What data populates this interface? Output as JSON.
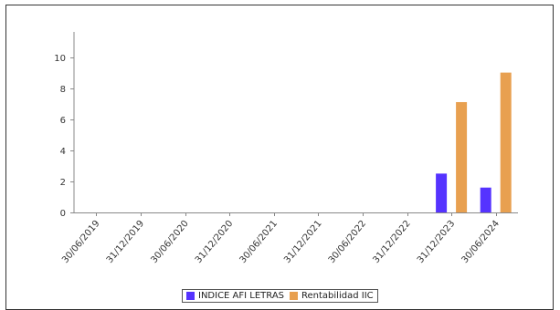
{
  "chart_data": {
    "type": "bar",
    "categories": [
      "30/06/2019",
      "31/12/2019",
      "30/06/2020",
      "31/12/2020",
      "30/06/2021",
      "31/12/2021",
      "30/06/2022",
      "31/12/2022",
      "31/12/2023",
      "30/06/2024"
    ],
    "series": [
      {
        "name": "INDICE AFI LETRAS",
        "color": "#5533ff",
        "values": [
          null,
          null,
          null,
          null,
          null,
          null,
          null,
          null,
          2.5,
          1.6
        ]
      },
      {
        "name": "Rentabilidad IIC",
        "color": "#e8a050",
        "values": [
          null,
          null,
          null,
          null,
          null,
          null,
          null,
          null,
          7.1,
          9.0
        ]
      }
    ],
    "ylim": [
      0,
      11.5
    ],
    "yticks": [
      0,
      2,
      4,
      6,
      8,
      10
    ],
    "title": "",
    "xlabel": "",
    "ylabel": "",
    "grid": false,
    "legend_position": "bottom"
  }
}
